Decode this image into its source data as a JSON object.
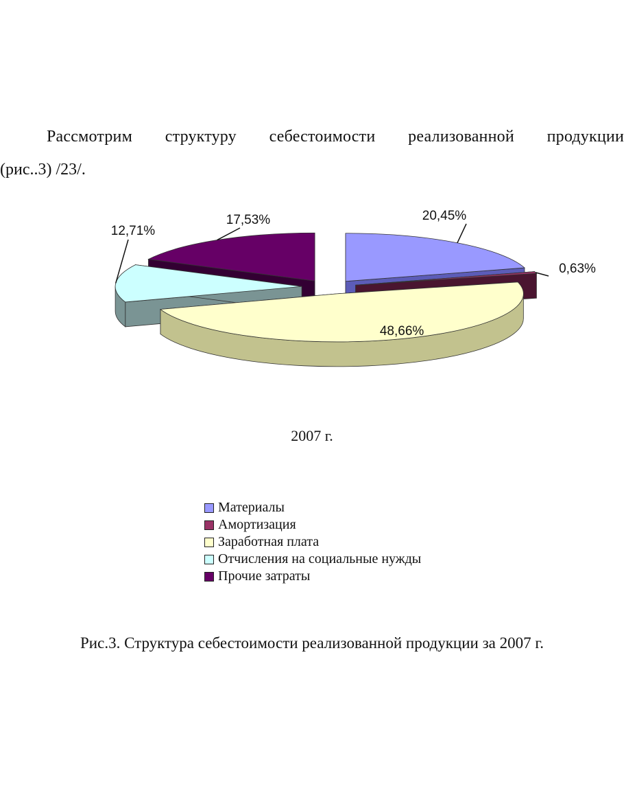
{
  "text": {
    "intro_line1": "Рассмотрим структуру себестоимости реализованной продукции",
    "intro_line2": "(рис..3) /23/.",
    "caption": "Рис.3. Структура себестоимости реализованной продукции за 2007 г."
  },
  "chart_data": {
    "type": "pie",
    "title": "2007 г.",
    "style": "3d-exploded",
    "legend_position": "bottom",
    "series": [
      {
        "name": "Материалы",
        "value": 20.45,
        "label": "20,45%",
        "color": "#9999FF",
        "side": "#5c5cb8"
      },
      {
        "name": "Амортизация",
        "value": 0.63,
        "label": "0,63%",
        "color": "#993366",
        "side": "#4a1530"
      },
      {
        "name": "Заработная плата",
        "value": 48.66,
        "label": "48,66%",
        "color": "#FFFFCC",
        "side": "#c2c28e"
      },
      {
        "name": "Отчисления на социальные нужды",
        "value": 12.71,
        "label": "12,71%",
        "color": "#CCFFFF",
        "side": "#7a9494"
      },
      {
        "name": "Прочие затраты",
        "value": 17.53,
        "label": "17,53%",
        "color": "#660066",
        "side": "#330033"
      }
    ]
  }
}
